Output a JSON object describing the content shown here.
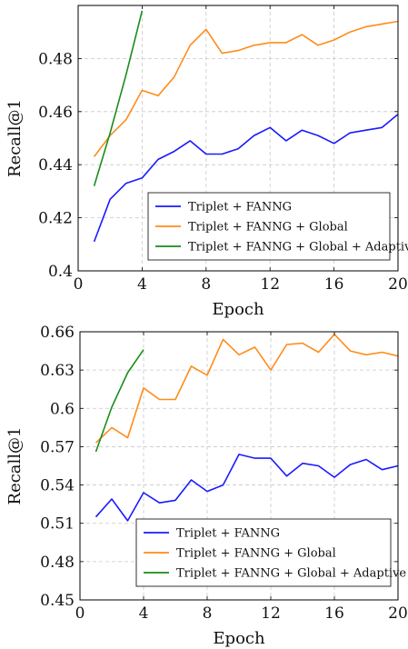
{
  "chart_data": [
    {
      "type": "line",
      "xlabel": "Epoch",
      "ylabel": "Recall@1",
      "xlim": [
        0,
        20
      ],
      "ylim": [
        0.4,
        0.5
      ],
      "xticks": [
        0,
        4,
        8,
        12,
        16,
        20
      ],
      "yticks": [
        0.4,
        0.42,
        0.44,
        0.46,
        0.48
      ],
      "ytick_labels": [
        "0.4",
        "0.42",
        "0.44",
        "0.46",
        "0.48"
      ],
      "grid": true,
      "legend_position": "bottom-right",
      "series": [
        {
          "name": "Triplet + FANNG",
          "color": "#1a1aff",
          "x": [
            1,
            2,
            3,
            4,
            5,
            6,
            7,
            8,
            9,
            10,
            11,
            12,
            13,
            14,
            15,
            16,
            17,
            18,
            19,
            20
          ],
          "y": [
            0.411,
            0.427,
            0.433,
            0.435,
            0.442,
            0.445,
            0.449,
            0.444,
            0.444,
            0.446,
            0.451,
            0.454,
            0.449,
            0.453,
            0.451,
            0.448,
            0.452,
            0.453,
            0.454,
            0.459
          ]
        },
        {
          "name": "Triplet + FANNG + Global",
          "color": "#ff8c1a",
          "x": [
            1,
            2,
            3,
            4,
            5,
            6,
            7,
            8,
            9,
            10,
            11,
            12,
            13,
            14,
            15,
            16,
            17,
            18,
            19,
            20
          ],
          "y": [
            0.443,
            0.451,
            0.457,
            0.468,
            0.466,
            0.473,
            0.485,
            0.491,
            0.482,
            0.483,
            0.485,
            0.486,
            0.486,
            0.489,
            0.485,
            0.487,
            0.49,
            0.492,
            0.493,
            0.494
          ]
        },
        {
          "name": "Triplet + FANNG + Global + Adaptive",
          "color": "#1a8c1a",
          "x": [
            1,
            2,
            3,
            4
          ],
          "y": [
            0.432,
            0.452,
            0.474,
            0.498
          ]
        }
      ]
    },
    {
      "type": "line",
      "xlabel": "Epoch",
      "ylabel": "Recall@1",
      "xlim": [
        0,
        20
      ],
      "ylim": [
        0.45,
        0.66
      ],
      "xticks": [
        0,
        4,
        8,
        12,
        16,
        20
      ],
      "yticks": [
        0.45,
        0.48,
        0.51,
        0.54,
        0.57,
        0.6,
        0.63,
        0.66
      ],
      "ytick_labels": [
        "0.45",
        "0.48",
        "0.51",
        "0.54",
        "0.57",
        "0.6",
        "0.63",
        "0.66"
      ],
      "grid": true,
      "legend_position": "bottom-right",
      "series": [
        {
          "name": "Triplet + FANNG",
          "color": "#1a1aff",
          "x": [
            1,
            2,
            3,
            4,
            5,
            6,
            7,
            8,
            9,
            10,
            11,
            12,
            13,
            14,
            15,
            16,
            17,
            18,
            19,
            20
          ],
          "y": [
            0.515,
            0.529,
            0.512,
            0.534,
            0.526,
            0.528,
            0.544,
            0.535,
            0.54,
            0.564,
            0.561,
            0.561,
            0.547,
            0.557,
            0.555,
            0.546,
            0.556,
            0.56,
            0.552,
            0.555
          ]
        },
        {
          "name": "Triplet + FANNG + Global",
          "color": "#ff8c1a",
          "x": [
            1,
            2,
            3,
            4,
            5,
            6,
            7,
            8,
            9,
            10,
            11,
            12,
            13,
            14,
            15,
            16,
            17,
            18,
            19,
            20
          ],
          "y": [
            0.573,
            0.585,
            0.577,
            0.616,
            0.607,
            0.607,
            0.633,
            0.626,
            0.654,
            0.642,
            0.648,
            0.63,
            0.65,
            0.651,
            0.644,
            0.658,
            0.645,
            0.642,
            0.644,
            0.641
          ]
        },
        {
          "name": "Triplet + FANNG + Global + Adaptive",
          "color": "#1a8c1a",
          "x": [
            1,
            2,
            3,
            4
          ],
          "y": [
            0.566,
            0.601,
            0.628,
            0.646
          ]
        }
      ]
    }
  ]
}
